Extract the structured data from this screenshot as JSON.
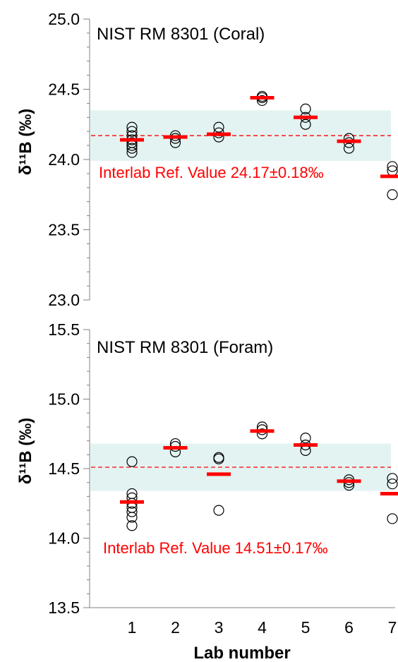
{
  "chart_data": [
    {
      "type": "scatter",
      "title": "NIST RM 8301 (Coral)",
      "ylabel": "δ¹¹B (‰)",
      "ylim": [
        23.0,
        25.0
      ],
      "yticks": [
        "23.0",
        "23.5",
        "24.0",
        "24.5",
        "25.0"
      ],
      "ref_value": 24.17,
      "ref_band": [
        23.99,
        24.35
      ],
      "ref_label": "Interlab Ref. Value 24.17±0.18‰",
      "ref_color": "#ff0000",
      "band_color": "#e3f3f2",
      "labs": [
        {
          "lab": 1,
          "points": [
            24.05,
            24.08,
            24.1,
            24.12,
            24.14,
            24.17,
            24.2,
            24.23
          ],
          "mean": 24.14
        },
        {
          "lab": 2,
          "points": [
            24.12,
            24.15,
            24.17
          ],
          "mean": 24.16
        },
        {
          "lab": 3,
          "points": [
            24.16,
            24.19,
            24.23
          ],
          "mean": 24.18
        },
        {
          "lab": 4,
          "points": [
            24.42,
            24.44,
            24.45
          ],
          "mean": 24.44
        },
        {
          "lab": 5,
          "points": [
            24.25,
            24.3,
            24.36
          ],
          "mean": 24.3
        },
        {
          "lab": 6,
          "points": [
            24.08,
            24.12,
            24.15
          ],
          "mean": 24.13
        },
        {
          "lab": 7,
          "points": [
            23.75,
            23.92,
            23.95
          ],
          "mean": 23.88
        }
      ]
    },
    {
      "type": "scatter",
      "title": "NIST RM 8301 (Foram)",
      "ylabel": "δ¹¹B (‰)",
      "xlabel": "Lab number",
      "ylim": [
        13.5,
        15.5
      ],
      "yticks": [
        "13.5",
        "14.0",
        "14.5",
        "15.0",
        "15.5"
      ],
      "xticks": [
        "1",
        "2",
        "3",
        "4",
        "5",
        "6",
        "7"
      ],
      "ref_value": 14.51,
      "ref_band": [
        14.34,
        14.68
      ],
      "ref_label": "Interlab Ref. Value 14.51±0.17‰",
      "ref_color": "#ff0000",
      "band_color": "#e3f3f2",
      "labs": [
        {
          "lab": 1,
          "points": [
            14.09,
            14.15,
            14.19,
            14.22,
            14.25,
            14.29,
            14.32,
            14.55
          ],
          "mean": 14.26
        },
        {
          "lab": 2,
          "points": [
            14.62,
            14.66,
            14.68
          ],
          "mean": 14.65
        },
        {
          "lab": 3,
          "points": [
            14.2,
            14.57,
            14.58
          ],
          "mean": 14.46
        },
        {
          "lab": 4,
          "points": [
            14.75,
            14.78,
            14.8
          ],
          "mean": 14.77
        },
        {
          "lab": 5,
          "points": [
            14.63,
            14.67,
            14.72
          ],
          "mean": 14.67
        },
        {
          "lab": 6,
          "points": [
            14.38,
            14.4,
            14.42
          ],
          "mean": 14.41
        },
        {
          "lab": 7,
          "points": [
            14.14,
            14.39,
            14.43
          ],
          "mean": 14.32
        }
      ]
    }
  ]
}
